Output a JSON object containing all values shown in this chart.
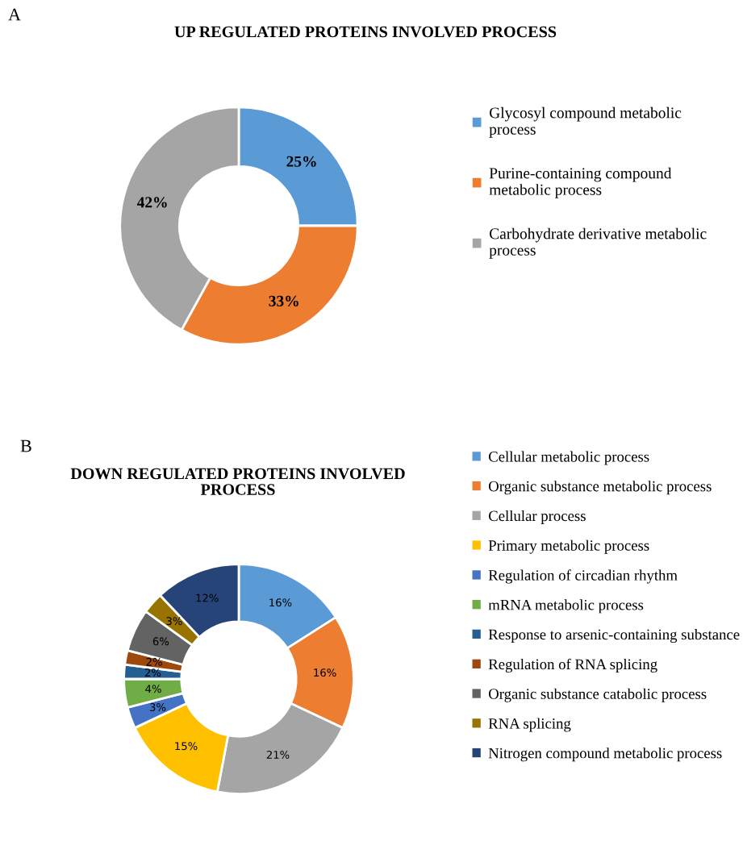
{
  "chart_data": [
    {
      "type": "donut",
      "title": "UP REGULATED PROTEINS INVOLVED PROCESS",
      "categories": [
        "Glycosyl compound metabolic process",
        "Purine-containing compound metabolic process",
        "Carbohydrate derivative metabolic process"
      ],
      "values": [
        25,
        33,
        42
      ],
      "colors": [
        "#5b9bd5",
        "#ed7d31",
        "#a5a5a5"
      ],
      "value_labels": [
        "25%",
        "33%",
        "42%"
      ],
      "legend": "right",
      "annotations": [
        "A"
      ]
    },
    {
      "type": "donut",
      "title": "DOWN REGULATED PROTEINS INVOLVED PROCESS",
      "categories": [
        "Cellular metabolic process",
        "Organic substance metabolic process",
        "Cellular process",
        "Primary metabolic process",
        "Regulation of circadian rhythm",
        "mRNA metabolic process",
        "Response to arsenic-containing substance",
        "Regulation of RNA splicing",
        "Organic substance catabolic process",
        "RNA splicing",
        "Nitrogen compound metabolic process"
      ],
      "values": [
        16,
        16,
        21,
        15,
        3,
        4,
        2,
        2,
        6,
        3,
        12
      ],
      "colors": [
        "#5b9bd5",
        "#ed7d31",
        "#a5a5a5",
        "#ffc000",
        "#4472c4",
        "#70ad47",
        "#255e91",
        "#9e480e",
        "#636363",
        "#997300",
        "#264478"
      ],
      "value_labels": [
        "16%",
        "16%",
        "21%",
        "15%",
        "3%",
        "4%",
        "2%",
        "2%",
        "6%",
        "3%",
        "12%"
      ],
      "legend": "right",
      "annotations": [
        "B"
      ]
    }
  ]
}
